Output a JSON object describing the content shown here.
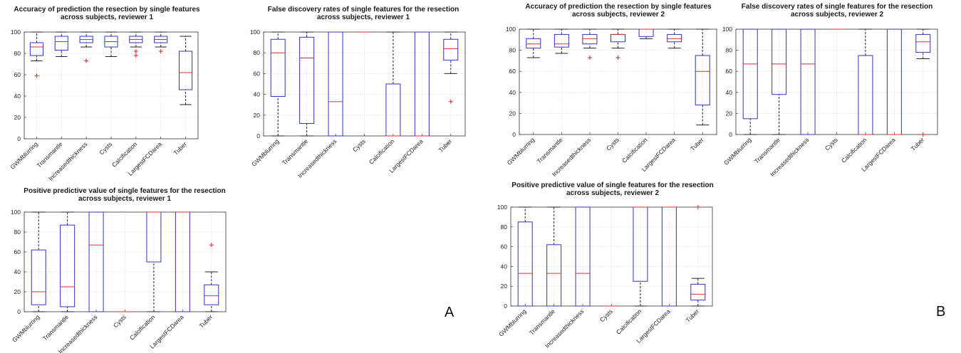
{
  "panel_labels": {
    "a": "A",
    "b": "B"
  },
  "colors": {
    "box": "#3333bb",
    "median": "#d93030",
    "outlier": "#e03030",
    "whisker": "#222222",
    "grid": "#d8d8d8",
    "frame": "#333333"
  },
  "chart_data": [
    {
      "type": "box",
      "title": [
        "Accuracy of prediction the resection by single features",
        "across subjects, reviewer 1"
      ],
      "ylim": [
        0,
        100
      ],
      "yticks": [
        0,
        20,
        40,
        60,
        80,
        100
      ],
      "grid": true,
      "categories": [
        "GWMblurring",
        "Transmantle",
        "Increasedthickness",
        "Cysts",
        "Calcification",
        "LargestFCDarea",
        "Tuber"
      ],
      "boxes": [
        {
          "min": 73,
          "q1": 78,
          "median": 86,
          "q3": 90,
          "max": 100,
          "outliers": [
            59
          ]
        },
        {
          "min": 77,
          "q1": 83,
          "median": 91,
          "q3": 96,
          "max": 100,
          "outliers": []
        },
        {
          "min": 86,
          "q1": 90,
          "median": 93,
          "q3": 96,
          "max": 100,
          "outliers": [
            73
          ]
        },
        {
          "min": 77,
          "q1": 86,
          "median": 91,
          "q3": 96,
          "max": 100,
          "outliers": []
        },
        {
          "min": 86,
          "q1": 90,
          "median": 93,
          "q3": 96,
          "max": 100,
          "outliers": [
            82,
            78
          ]
        },
        {
          "min": 86,
          "q1": 90,
          "median": 93,
          "q3": 96,
          "max": 100,
          "outliers": [
            82
          ]
        },
        {
          "min": 32,
          "q1": 46,
          "median": 62,
          "q3": 82,
          "max": 96,
          "outliers": []
        }
      ]
    },
    {
      "type": "box",
      "title": [
        "False discovery rates of single features for the resection",
        "across subjects, reviewer 1"
      ],
      "ylim": [
        0,
        100
      ],
      "yticks": [
        0,
        20,
        40,
        60,
        80,
        100
      ],
      "grid": true,
      "categories": [
        "GWMblurring",
        "Transmantle",
        "Increasedthickness",
        "Cysts",
        "Calcification",
        "LargestFCDarea",
        "Tuber"
      ],
      "boxes": [
        {
          "min": 0,
          "q1": 38,
          "median": 80,
          "q3": 93,
          "max": 100,
          "outliers": []
        },
        {
          "min": 0,
          "q1": 12,
          "median": 75,
          "q3": 95,
          "max": 100,
          "outliers": []
        },
        {
          "min": 0,
          "q1": 0,
          "median": 33,
          "q3": 100,
          "max": 100,
          "outliers": []
        },
        {
          "min": 100,
          "q1": 100,
          "median": 100,
          "q3": 100,
          "max": 100,
          "outliers": []
        },
        {
          "min": 0,
          "q1": 0,
          "median": 0,
          "q3": 50,
          "max": 100,
          "outliers": []
        },
        {
          "min": 0,
          "q1": 0,
          "median": 0,
          "q3": 100,
          "max": 100,
          "outliers": []
        },
        {
          "min": 60,
          "q1": 73,
          "median": 84,
          "q3": 93,
          "max": 100,
          "outliers": [
            33
          ]
        }
      ]
    },
    {
      "type": "box",
      "title": [
        "Positive predictive value of single features for the resection",
        "across subjects, reviewer 1"
      ],
      "ylim": [
        0,
        100
      ],
      "yticks": [
        0,
        20,
        40,
        60,
        80,
        100
      ],
      "grid": true,
      "categories": [
        "GWMblurring",
        "Transmantle",
        "Increasedthickness",
        "Cysts",
        "Calcification",
        "LargestFCDarea",
        "Tuber"
      ],
      "boxes": [
        {
          "min": 0,
          "q1": 7,
          "median": 20,
          "q3": 62,
          "max": 100,
          "outliers": []
        },
        {
          "min": 0,
          "q1": 5,
          "median": 25,
          "q3": 87,
          "max": 100,
          "outliers": []
        },
        {
          "min": 0,
          "q1": 0,
          "median": 67,
          "q3": 100,
          "max": 100,
          "outliers": []
        },
        {
          "min": 0,
          "q1": 0,
          "median": 0,
          "q3": 0,
          "max": 0,
          "outliers": []
        },
        {
          "min": 0,
          "q1": 50,
          "median": 100,
          "q3": 100,
          "max": 100,
          "outliers": []
        },
        {
          "min": 0,
          "q1": 0,
          "median": 100,
          "q3": 100,
          "max": 100,
          "outliers": []
        },
        {
          "min": 0,
          "q1": 7,
          "median": 16,
          "q3": 27,
          "max": 40,
          "outliers": [
            67
          ]
        }
      ]
    },
    {
      "type": "box",
      "title": [
        "Accuracy of prediction the resection by single features",
        "across subjects, reviewer 2"
      ],
      "ylim": [
        0,
        100
      ],
      "yticks": [
        0,
        20,
        40,
        60,
        80,
        100
      ],
      "grid": true,
      "categories": [
        "GWMblurring",
        "Transmantle",
        "Increasedthickness",
        "Cysts",
        "Calcification",
        "LargestFCDarea",
        "Tuber"
      ],
      "boxes": [
        {
          "min": 73,
          "q1": 82,
          "median": 86,
          "q3": 91,
          "max": 100,
          "outliers": []
        },
        {
          "min": 77,
          "q1": 83,
          "median": 86,
          "q3": 95,
          "max": 100,
          "outliers": []
        },
        {
          "min": 82,
          "q1": 86,
          "median": 91,
          "q3": 95,
          "max": 100,
          "outliers": [
            73
          ]
        },
        {
          "min": 82,
          "q1": 88,
          "median": 95,
          "q3": 95,
          "max": 100,
          "outliers": [
            73
          ]
        },
        {
          "min": 91,
          "q1": 93,
          "median": 100,
          "q3": 100,
          "max": 100,
          "outliers": []
        },
        {
          "min": 82,
          "q1": 88,
          "median": 91,
          "q3": 95,
          "max": 100,
          "outliers": []
        },
        {
          "min": 9,
          "q1": 28,
          "median": 60,
          "q3": 75,
          "max": 100,
          "outliers": []
        }
      ]
    },
    {
      "type": "box",
      "title": [
        "False discovery rates of single features for the resection",
        "across subjects, reviewer 2"
      ],
      "ylim": [
        0,
        100
      ],
      "yticks": [
        0,
        20,
        40,
        60,
        80,
        100
      ],
      "grid": true,
      "categories": [
        "GWMblurring",
        "Transmantle",
        "Increasedthickness",
        "Cysts",
        "Calcification",
        "LargestFCDarea",
        "Tuber"
      ],
      "boxes": [
        {
          "min": 0,
          "q1": 15,
          "median": 67,
          "q3": 100,
          "max": 100,
          "outliers": []
        },
        {
          "min": 0,
          "q1": 38,
          "median": 67,
          "q3": 100,
          "max": 100,
          "outliers": []
        },
        {
          "min": 0,
          "q1": 0,
          "median": 67,
          "q3": 100,
          "max": 100,
          "outliers": []
        },
        {
          "min": 100,
          "q1": 100,
          "median": 100,
          "q3": 100,
          "max": 100,
          "outliers": []
        },
        {
          "min": 0,
          "q1": 0,
          "median": 0,
          "q3": 75,
          "max": 100,
          "outliers": []
        },
        {
          "min": 0,
          "q1": 0,
          "median": 0,
          "q3": 100,
          "max": 100,
          "outliers": []
        },
        {
          "min": 72,
          "q1": 78,
          "median": 88,
          "q3": 95,
          "max": 100,
          "outliers": [
            0
          ]
        }
      ]
    },
    {
      "type": "box",
      "title": [
        "Positive predictive value of single features for the resection",
        "across subjects, reviewer 2"
      ],
      "ylim": [
        0,
        100
      ],
      "yticks": [
        0,
        20,
        40,
        60,
        80,
        100
      ],
      "grid": true,
      "categories": [
        "GWMblurring",
        "Transmantle",
        "Increasedthickness",
        "Cysts",
        "Calcification",
        "LargestFCDarea",
        "Tuber"
      ],
      "boxes": [
        {
          "min": 0,
          "q1": 0,
          "median": 33,
          "q3": 85,
          "max": 100,
          "outliers": []
        },
        {
          "min": 0,
          "q1": 0,
          "median": 33,
          "q3": 62,
          "max": 100,
          "outliers": []
        },
        {
          "min": 0,
          "q1": 0,
          "median": 33,
          "q3": 100,
          "max": 100,
          "outliers": []
        },
        {
          "min": 0,
          "q1": 0,
          "median": 0,
          "q3": 0,
          "max": 0,
          "outliers": []
        },
        {
          "min": 0,
          "q1": 25,
          "median": 100,
          "q3": 100,
          "max": 100,
          "outliers": []
        },
        {
          "min": 0,
          "q1": 0,
          "median": 100,
          "q3": 100,
          "max": 100,
          "outliers": []
        },
        {
          "min": 0,
          "q1": 6,
          "median": 12,
          "q3": 22,
          "max": 28,
          "outliers": [
            100
          ]
        }
      ]
    }
  ]
}
